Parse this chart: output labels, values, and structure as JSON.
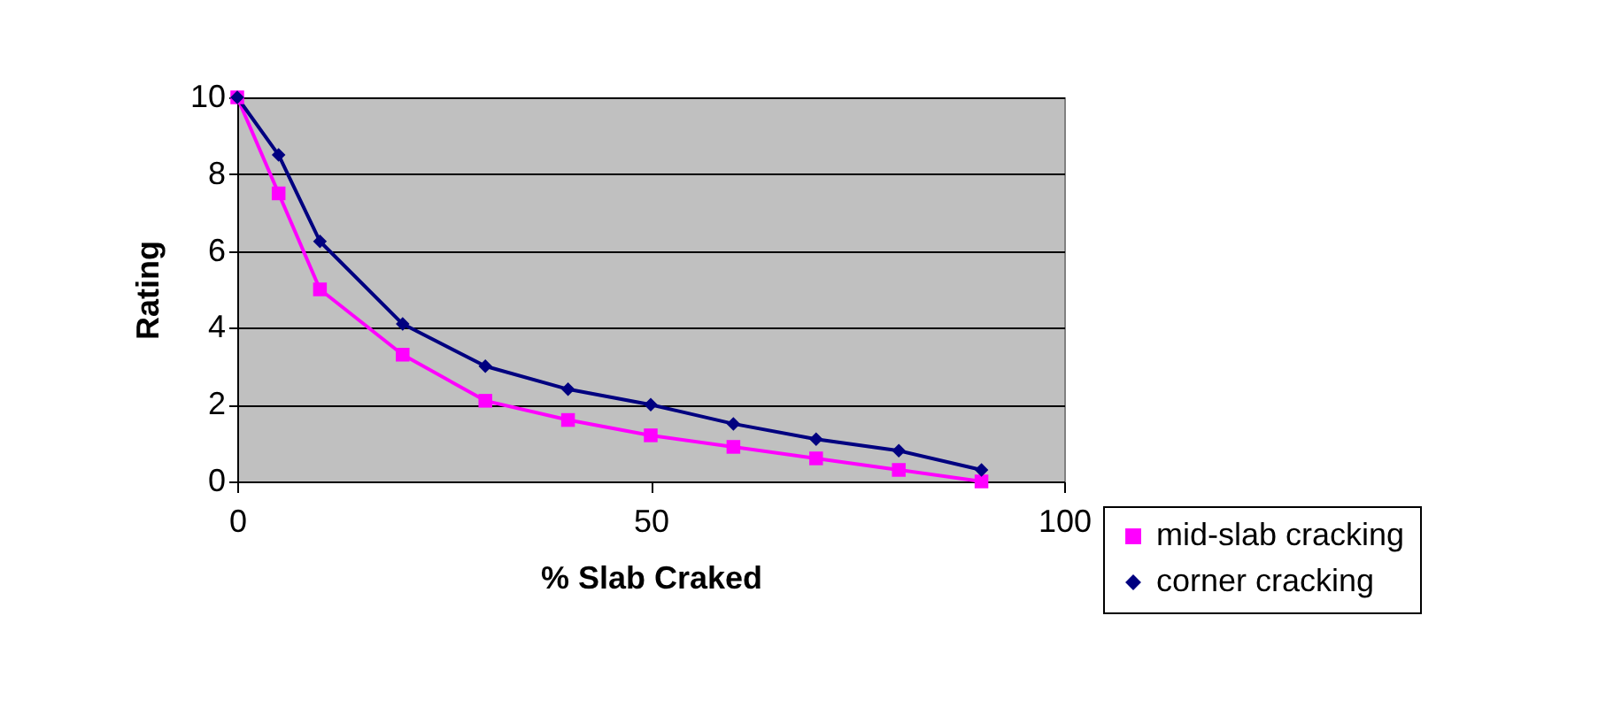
{
  "chart_data": {
    "type": "line",
    "xlabel": "% Slab Craked",
    "ylabel": "Rating",
    "x": [
      0,
      5,
      10,
      20,
      30,
      40,
      50,
      60,
      70,
      80,
      90
    ],
    "series": [
      {
        "name": "mid-slab cracking",
        "color": "#ff00ff",
        "marker": "square",
        "values": [
          10,
          7.5,
          5,
          3.3,
          2.1,
          1.6,
          1.2,
          0.9,
          0.6,
          0.3,
          0
        ]
      },
      {
        "name": "corner cracking",
        "color": "#000080",
        "marker": "diamond",
        "values": [
          10,
          8.5,
          6.25,
          4.1,
          3,
          2.4,
          2,
          1.5,
          1.1,
          0.8,
          0.3
        ]
      }
    ],
    "xlim": [
      0,
      100
    ],
    "xticks": [
      0,
      50,
      100
    ],
    "ylim": [
      0,
      10
    ],
    "yticks": [
      0,
      2,
      4,
      6,
      8,
      10
    ],
    "grid": "y",
    "legend": "bottom right",
    "line_style": "solid"
  }
}
